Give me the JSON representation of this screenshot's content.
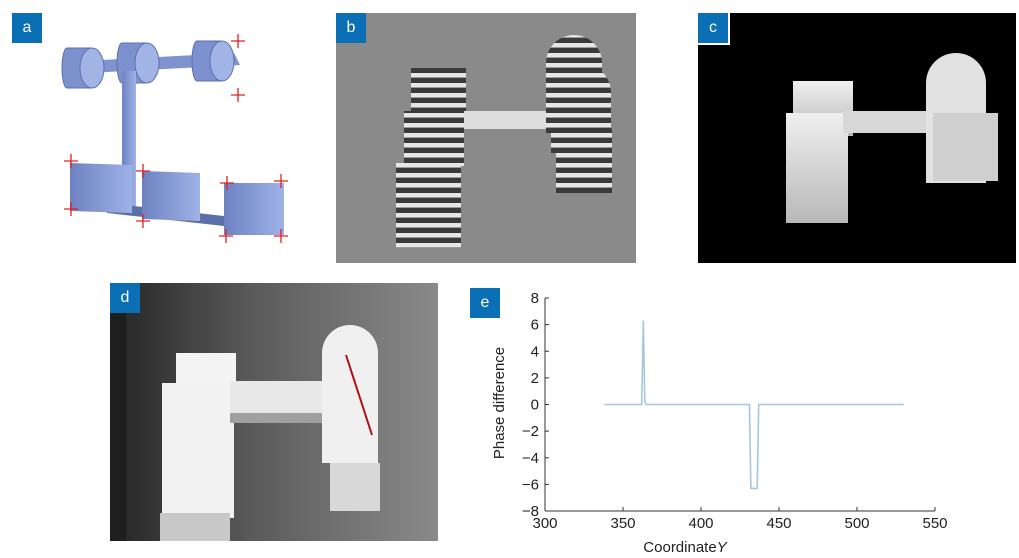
{
  "panels": {
    "a": {
      "label": "a"
    },
    "b": {
      "label": "b"
    },
    "c": {
      "label": "c"
    },
    "d": {
      "label": "d"
    },
    "e": {
      "label": "e"
    }
  },
  "colors": {
    "label_bg": "#0b6fb5",
    "model_face": "#8b9fd8",
    "marker": "#e02020",
    "line": "#a7c7e0",
    "mark_line": "#b01010"
  },
  "chart_data": {
    "type": "line",
    "xlabel": "Coordinate",
    "xlabel_italic": "Y",
    "ylabel": "Phase difference",
    "xlim": [
      300,
      550
    ],
    "ylim": [
      -8,
      8
    ],
    "xticks": [
      300,
      350,
      400,
      450,
      500,
      550
    ],
    "yticks": [
      -8,
      -6,
      -4,
      -2,
      0,
      2,
      4,
      6,
      8
    ],
    "grid": false,
    "series": [
      {
        "x": [
          338,
          362,
          363,
          364,
          365,
          430,
          431,
          432,
          436,
          437,
          438,
          530
        ],
        "y": [
          0,
          0,
          6.3,
          0.2,
          0,
          0,
          0,
          -6.3,
          -6.3,
          0,
          0,
          0
        ]
      }
    ]
  }
}
